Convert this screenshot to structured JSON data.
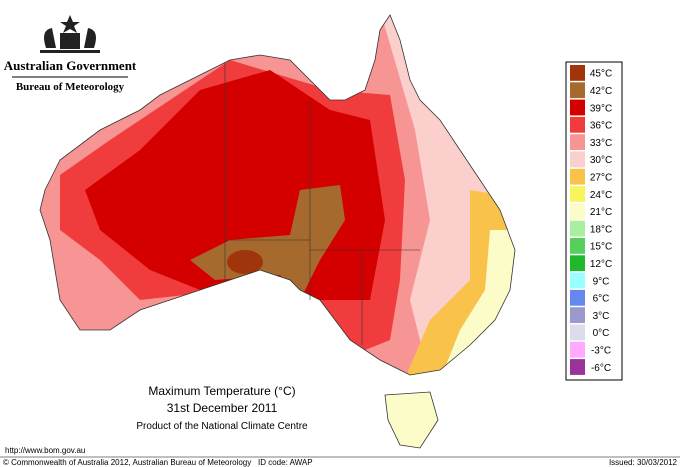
{
  "header": {
    "government": "Australian Government",
    "bureau": "Bureau of Meteorology"
  },
  "legend": {
    "entries": [
      {
        "label": "45°C",
        "color": "#a0340a"
      },
      {
        "label": "42°C",
        "color": "#a66a2e"
      },
      {
        "label": "39°C",
        "color": "#d40000"
      },
      {
        "label": "36°C",
        "color": "#f03c3c"
      },
      {
        "label": "33°C",
        "color": "#f79595"
      },
      {
        "label": "30°C",
        "color": "#fbd0cc"
      },
      {
        "label": "27°C",
        "color": "#f9c24a"
      },
      {
        "label": "24°C",
        "color": "#f9f55e"
      },
      {
        "label": "21°C",
        "color": "#fbfcc8"
      },
      {
        "label": "18°C",
        "color": "#a8f0a0"
      },
      {
        "label": "15°C",
        "color": "#55d05a"
      },
      {
        "label": "12°C",
        "color": "#1fb82a"
      },
      {
        "label": "9°C",
        "color": "#99ffff"
      },
      {
        "label": "6°C",
        "color": "#6688ee"
      },
      {
        "label": "3°C",
        "color": "#9999cc"
      },
      {
        "label": "0°C",
        "color": "#dcdcec"
      },
      {
        "label": "-3°C",
        "color": "#ffaaff"
      },
      {
        "label": "-6°C",
        "color": "#993399"
      }
    ]
  },
  "caption": {
    "title": "Maximum Temperature (°C)",
    "date": "31st December 2011",
    "source": "Product of the National Climate Centre"
  },
  "footer": {
    "url": "http://www.bom.gov.au",
    "copyright": "© Commonwealth of Australia 2012, Australian Bureau of Meteorology",
    "id_code": "ID code: AWAP",
    "issued": "Issued: 30/03/2012"
  }
}
